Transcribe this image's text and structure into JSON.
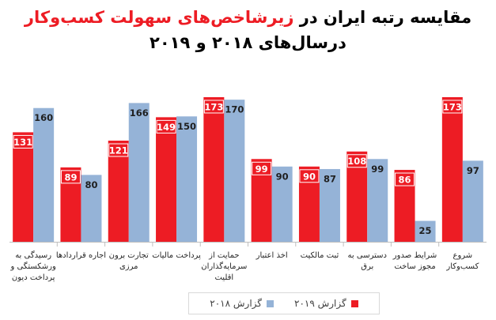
{
  "title": {
    "line1_part1": "مقایسه رتبه ایران در ",
    "line1_accent": "زیرشاخص‌های سهولت کسب‌وکار",
    "line2": "درسال‌های ۲۰۱۸ و ۲۰۱۹"
  },
  "colors": {
    "series_2019": "#ed1c24",
    "series_2018": "#95b3d7",
    "accent": "#ed1c24"
  },
  "chart_data": {
    "type": "bar",
    "categories": [
      [
        "رسیدگی به",
        "ورشکستگی و",
        "پرداخت دیون"
      ],
      [
        "اجاره قراردادها"
      ],
      [
        "تجارت برون",
        "مرزی"
      ],
      [
        "پرداخت مالیات"
      ],
      [
        "حمایت از",
        "سرمایه‌گذاران",
        "اقلیت"
      ],
      [
        "اخذ اعتبار"
      ],
      [
        "ثبت مالکیت"
      ],
      [
        "دسترسی به",
        "برق"
      ],
      [
        "شرایط صدور",
        "مجوز ساخت"
      ],
      [
        "شروع",
        "کسب‌وکار"
      ]
    ],
    "series": [
      {
        "name": "گزارش ۲۰۱۹",
        "values": [
          131,
          89,
          121,
          149,
          173,
          99,
          90,
          108,
          86,
          173
        ]
      },
      {
        "name": "گزارش ۲۰۱۸",
        "values": [
          160,
          80,
          166,
          150,
          170,
          90,
          87,
          99,
          25,
          97
        ]
      }
    ],
    "ylim": [
      0,
      190
    ],
    "grid": false,
    "legend_position": "bottom"
  }
}
